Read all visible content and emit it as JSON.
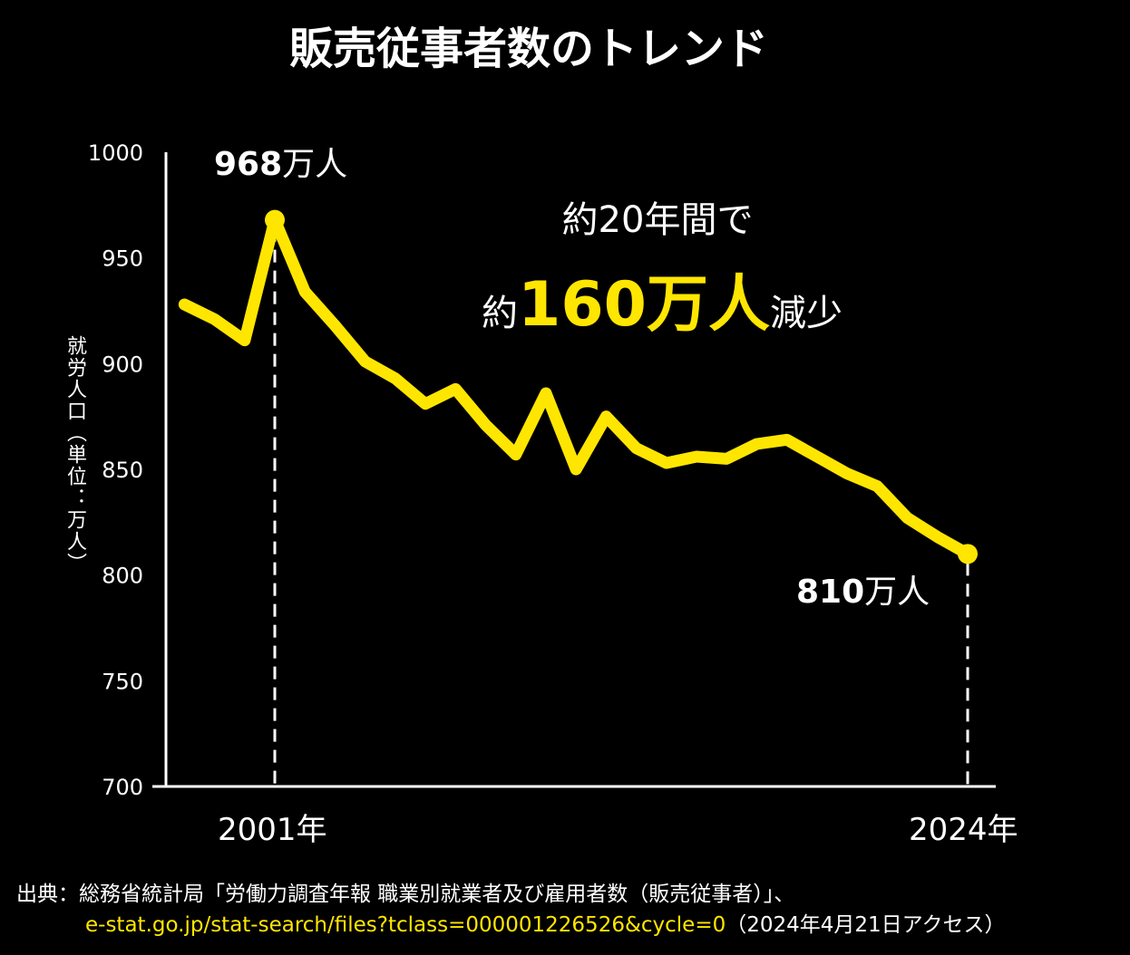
{
  "chart_data": {
    "type": "line",
    "title": "販売従事者数のトレンド",
    "ylabel": "就労人口（単位：万人）",
    "xlabel": "",
    "x": [
      1998,
      1999,
      2000,
      2001,
      2002,
      2003,
      2004,
      2005,
      2006,
      2007,
      2008,
      2009,
      2010,
      2011,
      2012,
      2013,
      2014,
      2015,
      2016,
      2017,
      2018,
      2019,
      2020,
      2021,
      2022,
      2023,
      2024
    ],
    "series": [
      {
        "name": "販売従事者数",
        "values": [
          928,
          921,
          911,
          968,
          934,
          918,
          901,
          893,
          881,
          888,
          871,
          857,
          886,
          850,
          875,
          860,
          853,
          856,
          855,
          862,
          864,
          856,
          848,
          842,
          827,
          818,
          810
        ]
      }
    ],
    "ylim": [
      700,
      1000
    ],
    "yticks": [
      700,
      750,
      800,
      850,
      900,
      950,
      1000
    ],
    "xtick_labels": [
      {
        "year": 2001,
        "label": "2001年"
      },
      {
        "year": 2024,
        "label": "2024年"
      }
    ],
    "grid": false,
    "color": "#FFE600",
    "annotations": {
      "peak": {
        "value": "968",
        "unit": "万人"
      },
      "end": {
        "value": "810",
        "unit": "万人"
      },
      "callout_line1": "約20年間で",
      "callout_prefix": "約",
      "callout_big": "160万人",
      "callout_suffix": "減少"
    }
  },
  "source": {
    "line1": "出典：総務省統計局「労働力調査年報 職業別就業者及び雇用者数（販売従事者）」、",
    "url": "e-stat.go.jp/stat-search/files?tclass=000001226526&cycle=0",
    "access": "（2024年4月21日アクセス）"
  }
}
